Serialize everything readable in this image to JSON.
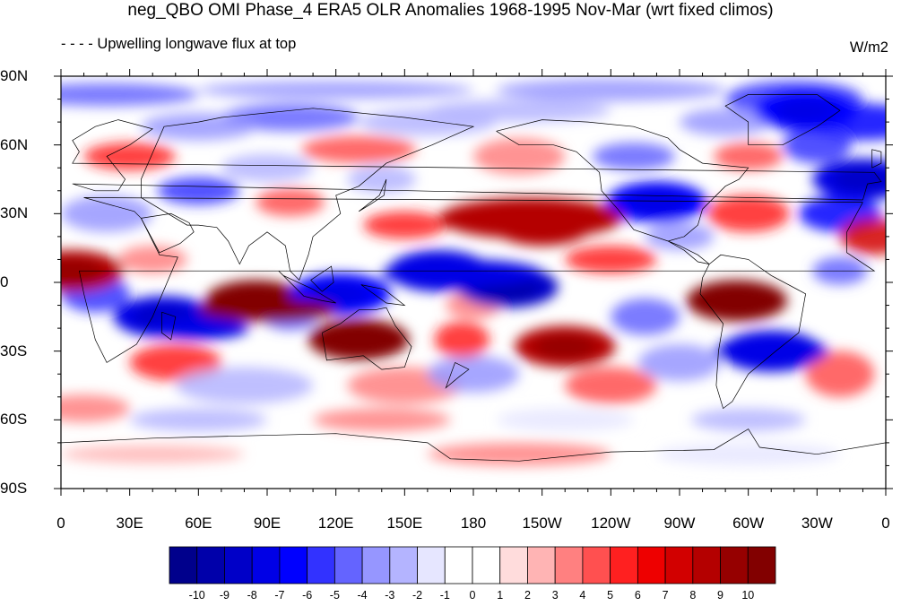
{
  "title": "neg_QBO OMI Phase_4 ERA5 OLR Anomalies 1968-1995 Nov-Mar (wrt fixed climos)",
  "subtitle": "- - - - Upwelling longwave flux at top",
  "units": "W/m2",
  "lat_labels": [
    "90N",
    "60N",
    "30N",
    "0",
    "30S",
    "60S",
    "90S"
  ],
  "lon_labels": [
    "0",
    "30E",
    "60E",
    "90E",
    "120E",
    "150E",
    "180",
    "150W",
    "120W",
    "90W",
    "60W",
    "30W",
    "0"
  ],
  "colorbar": {
    "labels": [
      "-10",
      "-9",
      "-8",
      "-7",
      "-6",
      "-5",
      "-4",
      "-3",
      "-2",
      "-1",
      "0",
      "1",
      "2",
      "3",
      "4",
      "5",
      "6",
      "7",
      "8",
      "9",
      "10"
    ],
    "colors": [
      "#00008c",
      "#0000aa",
      "#0000c8",
      "#0000e6",
      "#0000ff",
      "#3232ff",
      "#6464ff",
      "#9696ff",
      "#b4b4ff",
      "#e6e6ff",
      "#ffffff",
      "#ffffff",
      "#ffdcdc",
      "#ffb4b4",
      "#ff8080",
      "#ff5050",
      "#ff2020",
      "#ee0000",
      "#d20000",
      "#b40000",
      "#960000",
      "#820000"
    ]
  },
  "map_features": {
    "projection": "cylindrical equidistant",
    "lon_range": [
      0,
      360
    ],
    "lat_range": [
      -90,
      90
    ],
    "anomaly_regions": [
      {
        "lon": 210,
        "lat": 25,
        "value": 8,
        "note": "central N Pacific"
      },
      {
        "lon": 85,
        "lat": -8,
        "value": 10,
        "note": "Indian Ocean"
      },
      {
        "lon": 130,
        "lat": -25,
        "value": 10,
        "note": "Australia"
      },
      {
        "lon": 165,
        "lat": 5,
        "value": -8,
        "note": "west equatorial Pacific"
      },
      {
        "lon": 195,
        "lat": -2,
        "value": -9,
        "note": "central equatorial Pacific"
      },
      {
        "lon": 122,
        "lat": -5,
        "value": -7,
        "note": "Maritime Continent"
      },
      {
        "lon": 45,
        "lat": -15,
        "value": -8,
        "note": "SW Indian Ocean"
      },
      {
        "lon": 220,
        "lat": -28,
        "value": 8,
        "note": "South Pacific"
      },
      {
        "lon": 310,
        "lat": -30,
        "value": -8,
        "note": "South America / S Atlantic"
      },
      {
        "lon": 295,
        "lat": -8,
        "value": 10,
        "note": "Amazon"
      },
      {
        "lon": 260,
        "lat": 35,
        "value": -7,
        "note": "North America"
      },
      {
        "lon": 350,
        "lat": 45,
        "value": -8,
        "note": "North Atlantic"
      },
      {
        "lon": 5,
        "lat": 5,
        "value": 8,
        "note": "Gulf of Guinea"
      },
      {
        "lon": 325,
        "lat": 75,
        "value": -7,
        "note": "Greenland"
      }
    ]
  }
}
